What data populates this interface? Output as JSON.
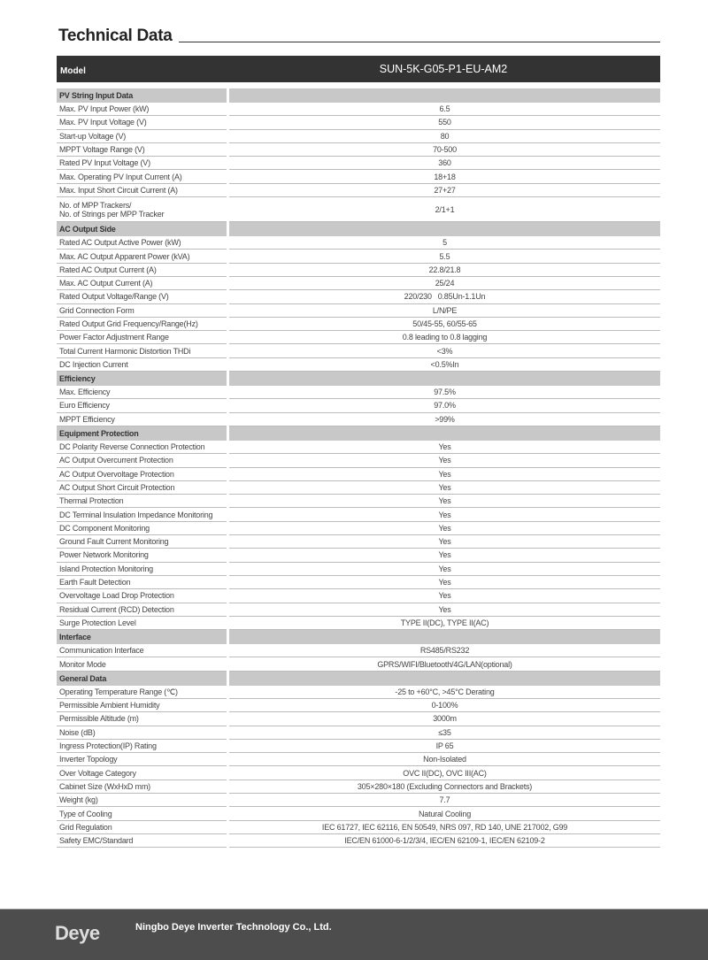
{
  "title": "Technical Data",
  "model_label": "Model",
  "model_value": "SUN-5K-G05-P1-EU-AM2",
  "sections": [
    {
      "name": "PV String Input Data",
      "rows": [
        [
          "Max. PV Input Power (kW)",
          "6.5"
        ],
        [
          "Max. PV Input Voltage (V)",
          "550"
        ],
        [
          "Start-up Voltage (V)",
          "80"
        ],
        [
          "MPPT Voltage Range (V)",
          "70-500"
        ],
        [
          "Rated PV Input Voltage (V)",
          "360"
        ],
        [
          "Max. Operating PV Input Current (A)",
          "18+18"
        ],
        [
          "Max. Input Short Circuit Current (A)",
          "27+27"
        ],
        [
          "No. of MPP Trackers/\nNo. of Strings per MPP Tracker",
          "2/1+1"
        ]
      ]
    },
    {
      "name": "AC Output Side",
      "rows": [
        [
          "Rated AC Output Active Power (kW)",
          "5"
        ],
        [
          "Max. AC Output Apparent Power (kVA)",
          "5.5"
        ],
        [
          "Rated AC Output Current (A)",
          "22.8/21.8"
        ],
        [
          "Max. AC Output Current (A)",
          "25/24"
        ],
        [
          "Rated Output Voltage/Range (V)",
          "220/230   0.85Un-1.1Un"
        ],
        [
          "Grid Connection Form",
          "L/N/PE"
        ],
        [
          "Rated Output Grid Frequency/Range(Hz)",
          "50/45-55, 60/55-65"
        ],
        [
          "Power Factor Adjustment Range",
          "0.8 leading to 0.8 lagging"
        ],
        [
          "Total Current Harmonic Distortion THDi",
          "<3%"
        ],
        [
          "DC Injection Current",
          "<0.5%In"
        ]
      ]
    },
    {
      "name": "Efficiency",
      "rows": [
        [
          "Max. Efficiency",
          "97.5%"
        ],
        [
          "Euro Efficiency",
          "97.0%"
        ],
        [
          "MPPT Efficiency",
          ">99%"
        ]
      ]
    },
    {
      "name": "Equipment Protection",
      "rows": [
        [
          "DC Polarity Reverse Connection Protection",
          "Yes"
        ],
        [
          "AC Output Overcurrent Protection",
          "Yes"
        ],
        [
          "AC Output Overvoltage Protection",
          "Yes"
        ],
        [
          "AC Output Short Circuit Protection",
          "Yes"
        ],
        [
          "Thermal Protection",
          "Yes"
        ],
        [
          "DC Terminal Insulation Impedance Monitoring",
          "Yes"
        ],
        [
          "DC Component Monitoring",
          "Yes"
        ],
        [
          "Ground Fault Current Monitoring",
          "Yes"
        ],
        [
          "Power Network Monitoring",
          "Yes"
        ],
        [
          "Island Protection Monitoring",
          "Yes"
        ],
        [
          "Earth Fault Detection",
          "Yes"
        ],
        [
          "Overvoltage Load Drop Protection",
          "Yes"
        ],
        [
          "Residual Current (RCD) Detection",
          "Yes"
        ],
        [
          "Surge Protection Level",
          "TYPE II(DC), TYPE II(AC)"
        ]
      ]
    },
    {
      "name": "Interface",
      "rows": [
        [
          "Communication Interface",
          "RS485/RS232"
        ],
        [
          "Monitor Mode",
          "GPRS/WIFI/Bluetooth/4G/LAN(optional)"
        ]
      ]
    },
    {
      "name": "General Data",
      "rows": [
        [
          "Operating Temperature Range (℃)",
          "-25 to +60°C, >45°C Derating"
        ],
        [
          "Permissible Ambient Humidity",
          "0-100%"
        ],
        [
          "Permissible Altitude (m)",
          "3000m"
        ],
        [
          "Noise (dB)",
          "≤35"
        ],
        [
          "Ingress Protection(IP) Rating",
          "IP 65"
        ],
        [
          "Inverter Topology",
          "Non-Isolated"
        ],
        [
          "Over Voltage Category",
          "OVC II(DC), OVC III(AC)"
        ],
        [
          "Cabinet Size (WxHxD mm)",
          "305×280×180 (Excluding Connectors and Brackets)"
        ],
        [
          "Weight (kg)",
          "7.7"
        ],
        [
          "Type of Cooling",
          "Natural Cooling"
        ],
        [
          "Grid Regulation",
          "IEC 61727, IEC 62116, EN 50549, NRS 097, RD 140, UNE 217002, G99"
        ],
        [
          "Safety EMC/Standard",
          "IEC/EN 61000-6-1/2/3/4, IEC/EN 62109-1, IEC/EN 62109-2"
        ]
      ]
    }
  ],
  "footer": {
    "logo": "Deye",
    "company": "Ningbo Deye Inverter Technology Co., Ltd."
  }
}
